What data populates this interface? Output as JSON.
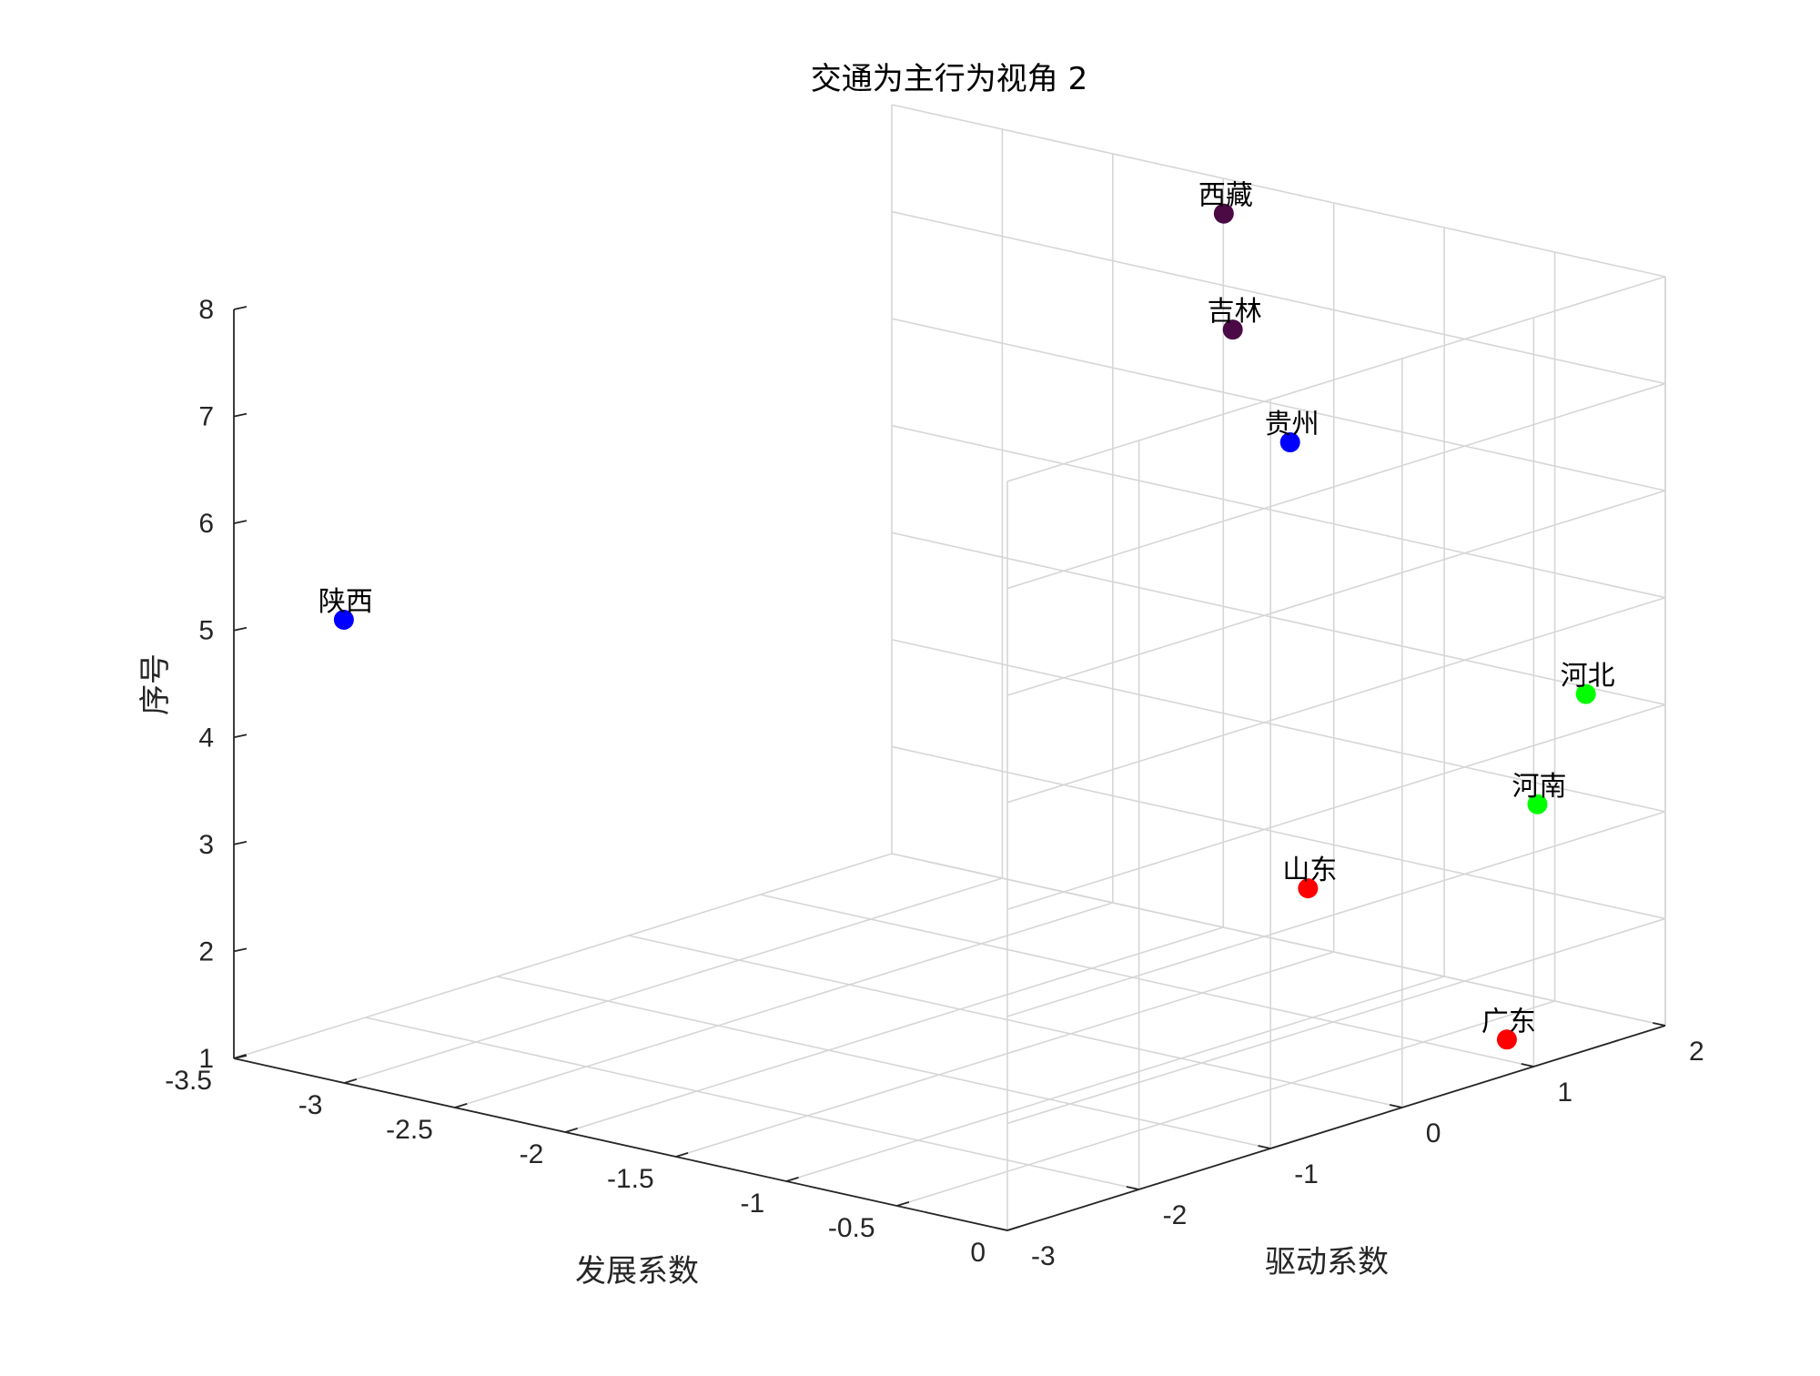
{
  "chart_data": {
    "type": "scatter",
    "projection": "3d",
    "title": "交通为主行为视角 2",
    "xlabel": "发展系数",
    "ylabel": "驱动系数",
    "zlabel": "序号",
    "xlim": [
      -3.5,
      0
    ],
    "ylim": [
      -3,
      2
    ],
    "zlim": [
      1,
      8
    ],
    "xticks": [
      "-3.5",
      "-3",
      "-2.5",
      "-2",
      "-1.5",
      "-1",
      "-0.5",
      "0"
    ],
    "yticks": [
      "-3",
      "-2",
      "-1",
      "0",
      "1",
      "2"
    ],
    "zticks": [
      "1",
      "2",
      "3",
      "4",
      "5",
      "6",
      "7",
      "8"
    ],
    "grid": true,
    "legend": "none",
    "points": [
      {
        "label": "广东",
        "x": -0.3,
        "y": 1.3,
        "z": 1,
        "color": "#ff0000"
      },
      {
        "label": "山东",
        "x": -1.2,
        "y": 1.3,
        "z": 2,
        "color": "#ff0000"
      },
      {
        "label": "河南",
        "x": -0.4,
        "y": 1.7,
        "z": 3,
        "color": "#00ff00"
      },
      {
        "label": "河北",
        "x": -0.3,
        "y": 1.9,
        "z": 4,
        "color": "#00ff00"
      },
      {
        "label": "陕西",
        "x": -3.3,
        "y": -2.5,
        "z": 5,
        "color": "#0000ff"
      },
      {
        "label": "贵州",
        "x": -1.4,
        "y": 1.5,
        "z": 6,
        "color": "#0000ff"
      },
      {
        "label": "吉林",
        "x": -1.6,
        "y": 1.4,
        "z": 7,
        "color": "#4b0a46"
      },
      {
        "label": "西藏",
        "x": -1.7,
        "y": 1.5,
        "z": 8,
        "color": "#4b0a46"
      }
    ]
  }
}
